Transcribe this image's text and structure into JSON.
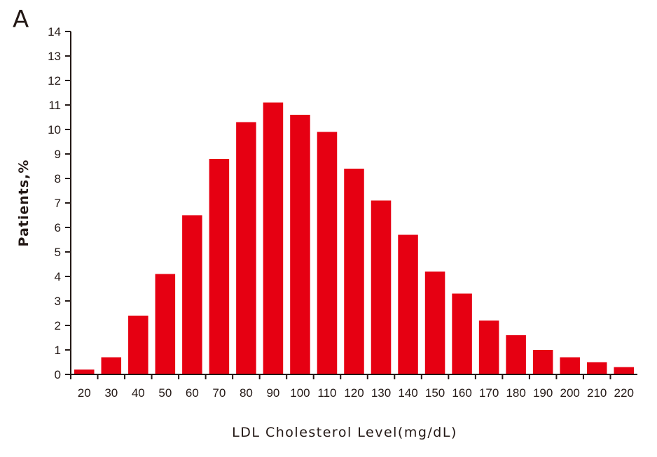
{
  "panel_label": "A",
  "chart_data": {
    "type": "bar",
    "title": "",
    "xlabel": "LDL Cholesterol Level(mg/dL)",
    "ylabel": "Patients,%",
    "categories": [
      "20",
      "30",
      "40",
      "50",
      "60",
      "70",
      "80",
      "90",
      "100",
      "110",
      "120",
      "130",
      "140",
      "150",
      "160",
      "170",
      "180",
      "190",
      "200",
      "210",
      "220"
    ],
    "values": [
      0.2,
      0.7,
      2.4,
      4.1,
      6.5,
      8.8,
      10.3,
      11.1,
      10.6,
      9.9,
      8.4,
      7.1,
      5.7,
      4.2,
      3.3,
      2.2,
      1.6,
      1.0,
      0.7,
      0.5,
      0.3
    ],
    "ylim": [
      0,
      14
    ],
    "yticks": [
      0,
      1,
      2,
      3,
      4,
      5,
      6,
      7,
      8,
      9,
      10,
      11,
      12,
      13,
      14
    ],
    "grid": false,
    "bar_color": "#e60012"
  }
}
